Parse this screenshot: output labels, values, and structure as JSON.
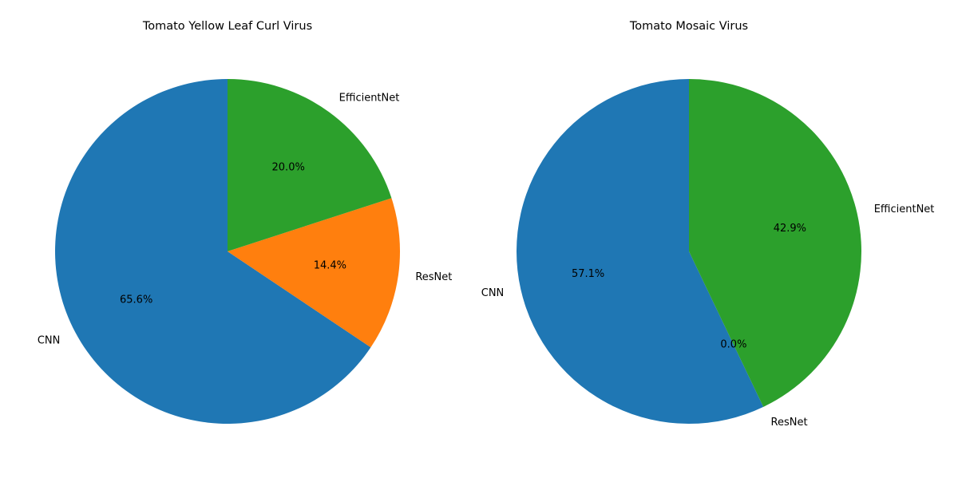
{
  "chart_data": [
    {
      "type": "pie",
      "title": "Tomato Yellow Leaf Curl Virus",
      "categories": [
        "CNN",
        "ResNet",
        "EfficientNet"
      ],
      "values": [
        65.6,
        14.4,
        20.0
      ],
      "percent_labels": [
        "65.6%",
        "14.4%",
        "20.0%"
      ],
      "colors": [
        "#1f77b4",
        "#ff7f0e",
        "#2ca02c"
      ],
      "start_angle_deg": 90,
      "direction": "counterclockwise"
    },
    {
      "type": "pie",
      "title": "Tomato Mosaic Virus",
      "categories": [
        "CNN",
        "ResNet",
        "EfficientNet"
      ],
      "values": [
        57.1,
        0.0,
        42.9
      ],
      "percent_labels": [
        "57.1%",
        "0.0%",
        "42.9%"
      ],
      "colors": [
        "#1f77b4",
        "#ff7f0e",
        "#2ca02c"
      ],
      "start_angle_deg": 90,
      "direction": "counterclockwise"
    }
  ]
}
